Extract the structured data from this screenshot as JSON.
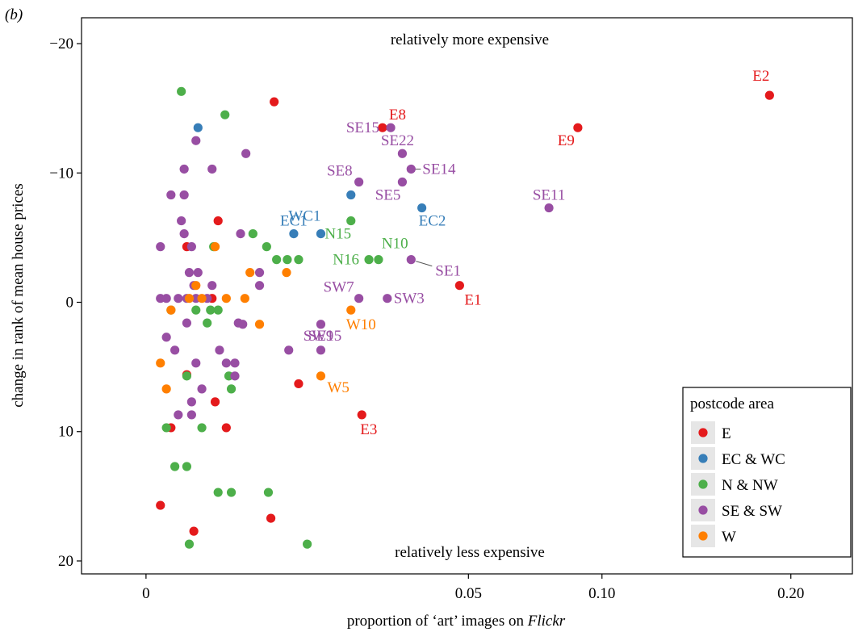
{
  "panel_label": "(b)",
  "colors": {
    "E": "#e41a1c",
    "EC & WC": "#377eb8",
    "N & NW": "#4daf4a",
    "SE & SW": "#984ea3",
    "W": "#ff7f00"
  },
  "chart_data": {
    "type": "scatter",
    "xlabel_prefix": "proportion of ‘art’ images on ",
    "xlabel_italic": "Flickr",
    "ylabel": "change in rank of mean house prices",
    "x_scale": "sqrt",
    "xlim": [
      -0.002,
      0.24
    ],
    "ylim": [
      -22,
      21
    ],
    "y_reversed": true,
    "x_ticks": [
      {
        "value": 0,
        "label": "0"
      },
      {
        "value": 0.05,
        "label": "0.05"
      },
      {
        "value": 0.1,
        "label": "0.10"
      },
      {
        "value": 0.2,
        "label": "0.20"
      }
    ],
    "y_ticks": [
      {
        "value": -20,
        "label": "−20"
      },
      {
        "value": -10,
        "label": "−10"
      },
      {
        "value": 0,
        "label": "0"
      },
      {
        "value": 10,
        "label": "10"
      },
      {
        "value": 20,
        "label": "20"
      }
    ],
    "annotations": {
      "top": "relatively more expensive",
      "bottom": "relatively less expensive"
    },
    "legend": {
      "title": "postcode area",
      "position": "bottom-right",
      "entries": [
        "E",
        "EC & WC",
        "N & NW",
        "SE & SW",
        "W"
      ]
    },
    "grid": false,
    "points": [
      {
        "x": 0.187,
        "y": -16,
        "group": "E",
        "label": "E2"
      },
      {
        "x": 0.0897,
        "y": -13.5,
        "group": "E",
        "label": "E9"
      },
      {
        "x": 0.0269,
        "y": -13.5,
        "group": "E",
        "label": "E8"
      },
      {
        "x": 0.0473,
        "y": -1.3,
        "group": "E",
        "label": "E1"
      },
      {
        "x": 0.0224,
        "y": 8.7,
        "group": "E",
        "label": "E3"
      },
      {
        "x": 0.0112,
        "y": 6.3,
        "group": "E",
        "label": ""
      },
      {
        "x": 0.0079,
        "y": -15.5,
        "group": "E",
        "label": ""
      },
      {
        "x": 0.0025,
        "y": -6.3,
        "group": "E",
        "label": ""
      },
      {
        "x": 0.0008,
        "y": -4.3,
        "group": "E",
        "label": ""
      },
      {
        "x": 0.0008,
        "y": 5.6,
        "group": "E",
        "label": ""
      },
      {
        "x": 0.0003,
        "y": 9.7,
        "group": "E",
        "label": ""
      },
      {
        "x": 0.0023,
        "y": 7.7,
        "group": "E",
        "label": ""
      },
      {
        "x": 0.0031,
        "y": 9.7,
        "group": "E",
        "label": ""
      },
      {
        "x": 0.0001,
        "y": 15.7,
        "group": "E",
        "label": ""
      },
      {
        "x": 0.0011,
        "y": 17.7,
        "group": "E",
        "label": ""
      },
      {
        "x": 0.0075,
        "y": 16.7,
        "group": "E",
        "label": ""
      },
      {
        "x": 0.0021,
        "y": -0.3,
        "group": "E",
        "label": ""
      },
      {
        "x": 0.0366,
        "y": -7.3,
        "group": "EC & WC",
        "label": "EC2"
      },
      {
        "x": 0.0147,
        "y": -5.3,
        "group": "EC & WC",
        "label": "WC1"
      },
      {
        "x": 0.0105,
        "y": -5.3,
        "group": "EC & WC",
        "label": "EC1"
      },
      {
        "x": 0.0202,
        "y": -8.3,
        "group": "EC & WC",
        "label": ""
      },
      {
        "x": 0.0013,
        "y": -13.5,
        "group": "EC & WC",
        "label": ""
      },
      {
        "x": 0.0202,
        "y": -6.3,
        "group": "N & NW",
        "label": "N15"
      },
      {
        "x": 0.026,
        "y": -3.3,
        "group": "N & NW",
        "label": "N10"
      },
      {
        "x": 0.0239,
        "y": -3.3,
        "group": "N & NW",
        "label": "N16"
      },
      {
        "x": 0.0006,
        "y": -16.3,
        "group": "N & NW",
        "label": ""
      },
      {
        "x": 0.003,
        "y": -14.5,
        "group": "N & NW",
        "label": ""
      },
      {
        "x": 0.0055,
        "y": -5.3,
        "group": "N & NW",
        "label": ""
      },
      {
        "x": 0.007,
        "y": -4.3,
        "group": "N & NW",
        "label": ""
      },
      {
        "x": 0.0082,
        "y": -3.3,
        "group": "N & NW",
        "label": ""
      },
      {
        "x": 0.0096,
        "y": -3.3,
        "group": "N & NW",
        "label": ""
      },
      {
        "x": 0.0112,
        "y": -3.3,
        "group": "N & NW",
        "label": ""
      },
      {
        "x": 0.0022,
        "y": -4.3,
        "group": "N & NW",
        "label": ""
      },
      {
        "x": 0.0012,
        "y": 0.6,
        "group": "N & NW",
        "label": ""
      },
      {
        "x": 0.002,
        "y": 0.6,
        "group": "N & NW",
        "label": ""
      },
      {
        "x": 0.0018,
        "y": 1.6,
        "group": "N & NW",
        "label": ""
      },
      {
        "x": 0.0025,
        "y": 0.6,
        "group": "N & NW",
        "label": ""
      },
      {
        "x": 0.0008,
        "y": 5.7,
        "group": "N & NW",
        "label": ""
      },
      {
        "x": 0.0033,
        "y": 5.7,
        "group": "N & NW",
        "label": ""
      },
      {
        "x": 0.0035,
        "y": 6.7,
        "group": "N & NW",
        "label": ""
      },
      {
        "x": 0.0002,
        "y": 9.7,
        "group": "N & NW",
        "label": ""
      },
      {
        "x": 0.0015,
        "y": 9.7,
        "group": "N & NW",
        "label": ""
      },
      {
        "x": 0.0004,
        "y": 12.7,
        "group": "N & NW",
        "label": ""
      },
      {
        "x": 0.0008,
        "y": 12.7,
        "group": "N & NW",
        "label": ""
      },
      {
        "x": 0.0025,
        "y": 14.7,
        "group": "N & NW",
        "label": ""
      },
      {
        "x": 0.0035,
        "y": 14.7,
        "group": "N & NW",
        "label": ""
      },
      {
        "x": 0.0072,
        "y": 14.7,
        "group": "N & NW",
        "label": ""
      },
      {
        "x": 0.0009,
        "y": 18.7,
        "group": "N & NW",
        "label": ""
      },
      {
        "x": 0.0125,
        "y": 18.7,
        "group": "N & NW",
        "label": ""
      },
      {
        "x": 0.0003,
        "y": 0.6,
        "group": "N & NW",
        "label": ""
      },
      {
        "x": 0.0288,
        "y": -13.5,
        "group": "SE & SW",
        "label": "SE15"
      },
      {
        "x": 0.0316,
        "y": -11.5,
        "group": "SE & SW",
        "label": "SE22"
      },
      {
        "x": 0.0338,
        "y": -10.3,
        "group": "SE & SW",
        "label": "SE14"
      },
      {
        "x": 0.0218,
        "y": -9.3,
        "group": "SE & SW",
        "label": "SE8"
      },
      {
        "x": 0.0316,
        "y": -9.3,
        "group": "SE & SW",
        "label": "SE5"
      },
      {
        "x": 0.0781,
        "y": -7.3,
        "group": "SE & SW",
        "label": "SE11"
      },
      {
        "x": 0.0338,
        "y": -3.3,
        "group": "SE & SW",
        "label": "SE1"
      },
      {
        "x": 0.0218,
        "y": -0.3,
        "group": "SE & SW",
        "label": "SW7"
      },
      {
        "x": 0.028,
        "y": -0.3,
        "group": "SE & SW",
        "label": "SW3"
      },
      {
        "x": 0.0147,
        "y": 1.7,
        "group": "SE & SW",
        "label": "SW15"
      },
      {
        "x": 0.0147,
        "y": 3.7,
        "group": "SE & SW",
        "label": "SE9"
      },
      {
        "x": 0.0012,
        "y": -12.5,
        "group": "SE & SW",
        "label": ""
      },
      {
        "x": 0.0048,
        "y": -11.5,
        "group": "SE & SW",
        "label": ""
      },
      {
        "x": 0.0007,
        "y": -10.3,
        "group": "SE & SW",
        "label": ""
      },
      {
        "x": 0.0021,
        "y": -10.3,
        "group": "SE & SW",
        "label": ""
      },
      {
        "x": 0.0003,
        "y": -8.3,
        "group": "SE & SW",
        "label": ""
      },
      {
        "x": 0.0007,
        "y": -8.3,
        "group": "SE & SW",
        "label": ""
      },
      {
        "x": 0.0007,
        "y": -5.3,
        "group": "SE & SW",
        "label": ""
      },
      {
        "x": 0.0043,
        "y": -5.3,
        "group": "SE & SW",
        "label": ""
      },
      {
        "x": 0.0001,
        "y": -4.3,
        "group": "SE & SW",
        "label": ""
      },
      {
        "x": 0.001,
        "y": -4.3,
        "group": "SE & SW",
        "label": ""
      },
      {
        "x": 0.0009,
        "y": -2.3,
        "group": "SE & SW",
        "label": ""
      },
      {
        "x": 0.0013,
        "y": -2.3,
        "group": "SE & SW",
        "label": ""
      },
      {
        "x": 0.0062,
        "y": -2.3,
        "group": "SE & SW",
        "label": ""
      },
      {
        "x": 0.0011,
        "y": -1.3,
        "group": "SE & SW",
        "label": ""
      },
      {
        "x": 0.0021,
        "y": -1.3,
        "group": "SE & SW",
        "label": ""
      },
      {
        "x": 0.0062,
        "y": -1.3,
        "group": "SE & SW",
        "label": ""
      },
      {
        "x": 0.0001,
        "y": -0.3,
        "group": "SE & SW",
        "label": ""
      },
      {
        "x": 0.0002,
        "y": -0.3,
        "group": "SE & SW",
        "label": ""
      },
      {
        "x": 0.0005,
        "y": -0.3,
        "group": "SE & SW",
        "label": ""
      },
      {
        "x": 0.0008,
        "y": -0.3,
        "group": "SE & SW",
        "label": ""
      },
      {
        "x": 0.0012,
        "y": -0.3,
        "group": "SE & SW",
        "label": ""
      },
      {
        "x": 0.0018,
        "y": -0.3,
        "group": "SE & SW",
        "label": ""
      },
      {
        "x": 0.0008,
        "y": 1.6,
        "group": "SE & SW",
        "label": ""
      },
      {
        "x": 0.0041,
        "y": 1.6,
        "group": "SE & SW",
        "label": ""
      },
      {
        "x": 0.0045,
        "y": 1.7,
        "group": "SE & SW",
        "label": ""
      },
      {
        "x": 0.0002,
        "y": 2.7,
        "group": "SE & SW",
        "label": ""
      },
      {
        "x": 0.0004,
        "y": 3.7,
        "group": "SE & SW",
        "label": ""
      },
      {
        "x": 0.0026,
        "y": 3.7,
        "group": "SE & SW",
        "label": ""
      },
      {
        "x": 0.0098,
        "y": 3.7,
        "group": "SE & SW",
        "label": ""
      },
      {
        "x": 0.0031,
        "y": 4.7,
        "group": "SE & SW",
        "label": ""
      },
      {
        "x": 0.0038,
        "y": 4.7,
        "group": "SE & SW",
        "label": ""
      },
      {
        "x": 0.0012,
        "y": 4.7,
        "group": "SE & SW",
        "label": ""
      },
      {
        "x": 0.0038,
        "y": 5.7,
        "group": "SE & SW",
        "label": ""
      },
      {
        "x": 0.0015,
        "y": 6.7,
        "group": "SE & SW",
        "label": ""
      },
      {
        "x": 0.001,
        "y": 7.7,
        "group": "SE & SW",
        "label": ""
      },
      {
        "x": 0.0005,
        "y": 8.7,
        "group": "SE & SW",
        "label": ""
      },
      {
        "x": 0.001,
        "y": 8.7,
        "group": "SE & SW",
        "label": ""
      },
      {
        "x": 0.0006,
        "y": -6.3,
        "group": "SE & SW",
        "label": ""
      },
      {
        "x": 0.0202,
        "y": 0.6,
        "group": "W",
        "label": "W10"
      },
      {
        "x": 0.0147,
        "y": 5.7,
        "group": "W",
        "label": "W5"
      },
      {
        "x": 0.0052,
        "y": -2.3,
        "group": "W",
        "label": ""
      },
      {
        "x": 0.0095,
        "y": -2.3,
        "group": "W",
        "label": ""
      },
      {
        "x": 0.0023,
        "y": -4.3,
        "group": "W",
        "label": ""
      },
      {
        "x": 0.0012,
        "y": -1.3,
        "group": "W",
        "label": ""
      },
      {
        "x": 0.0009,
        "y": -0.3,
        "group": "W",
        "label": ""
      },
      {
        "x": 0.0015,
        "y": -0.3,
        "group": "W",
        "label": ""
      },
      {
        "x": 0.0031,
        "y": -0.3,
        "group": "W",
        "label": ""
      },
      {
        "x": 0.0047,
        "y": -0.3,
        "group": "W",
        "label": ""
      },
      {
        "x": 0.0003,
        "y": 0.6,
        "group": "W",
        "label": ""
      },
      {
        "x": 0.0062,
        "y": 1.7,
        "group": "W",
        "label": ""
      },
      {
        "x": 0.0001,
        "y": 4.7,
        "group": "W",
        "label": ""
      },
      {
        "x": 0.0002,
        "y": 6.7,
        "group": "W",
        "label": ""
      }
    ]
  }
}
